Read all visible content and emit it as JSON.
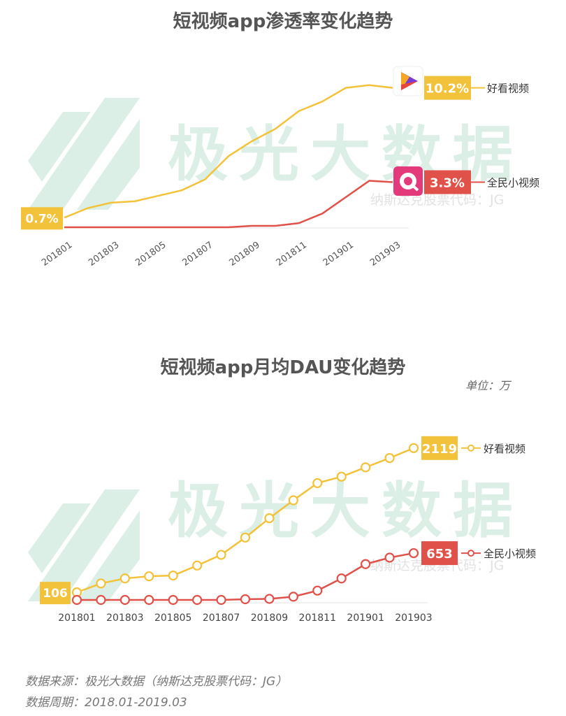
{
  "watermark": {
    "brand": "极光大数据",
    "stock": "纳斯达克股票代码：JG"
  },
  "colors": {
    "haokan": "#f2c23a",
    "quanmin": "#e0514a",
    "watermark": "#dcefe6"
  },
  "chart_data": [
    {
      "type": "line",
      "title": "短视频app渗透率变化趋势",
      "x": [
        "201801",
        "201802",
        "201803",
        "201804",
        "201805",
        "201806",
        "201807",
        "201808",
        "201809",
        "201810",
        "201811",
        "201812",
        "201901",
        "201902",
        "201903"
      ],
      "tick_labels": [
        "201801",
        "201803",
        "201805",
        "201807",
        "201809",
        "201811",
        "201901",
        "201903"
      ],
      "ylim": [
        0,
        11
      ],
      "series": [
        {
          "name": "好看视频",
          "values": [
            0.7,
            1.4,
            1.8,
            1.9,
            2.3,
            2.7,
            3.5,
            5.2,
            6.3,
            7.2,
            8.5,
            9.2,
            10.2,
            10.4,
            10.2
          ],
          "end_label": "10.2%",
          "start_label": "0.7%"
        },
        {
          "name": "全民小视频",
          "values": [
            0,
            0,
            0,
            0,
            0,
            0,
            0,
            0,
            0.1,
            0.1,
            0.3,
            1.0,
            2.2,
            3.4,
            3.3
          ],
          "end_label": "3.3%"
        }
      ]
    },
    {
      "type": "line",
      "title": "短视频app月均DAU变化趋势",
      "unit": "单位：万",
      "x": [
        "201801",
        "201802",
        "201803",
        "201804",
        "201805",
        "201806",
        "201807",
        "201808",
        "201809",
        "201810",
        "201811",
        "201812",
        "201901",
        "201902",
        "201903"
      ],
      "tick_labels": [
        "201801",
        "201803",
        "201805",
        "201807",
        "201809",
        "201811",
        "201901",
        "201903"
      ],
      "ylim": [
        0,
        2400
      ],
      "series": [
        {
          "name": "好看视频",
          "values": [
            106,
            230,
            300,
            330,
            340,
            480,
            630,
            870,
            1140,
            1390,
            1630,
            1720,
            1850,
            1980,
            2119
          ],
          "end_label": "2119",
          "start_label": "106"
        },
        {
          "name": "全民小视频",
          "values": [
            0,
            0,
            0,
            0,
            0,
            0,
            0,
            10,
            15,
            45,
            130,
            300,
            500,
            590,
            653
          ],
          "end_label": "653"
        }
      ]
    }
  ],
  "footer": {
    "source": "数据来源：极光大数据（纳斯达克股票代码：JG）",
    "period": "数据周期：2018.01-2019.03"
  }
}
